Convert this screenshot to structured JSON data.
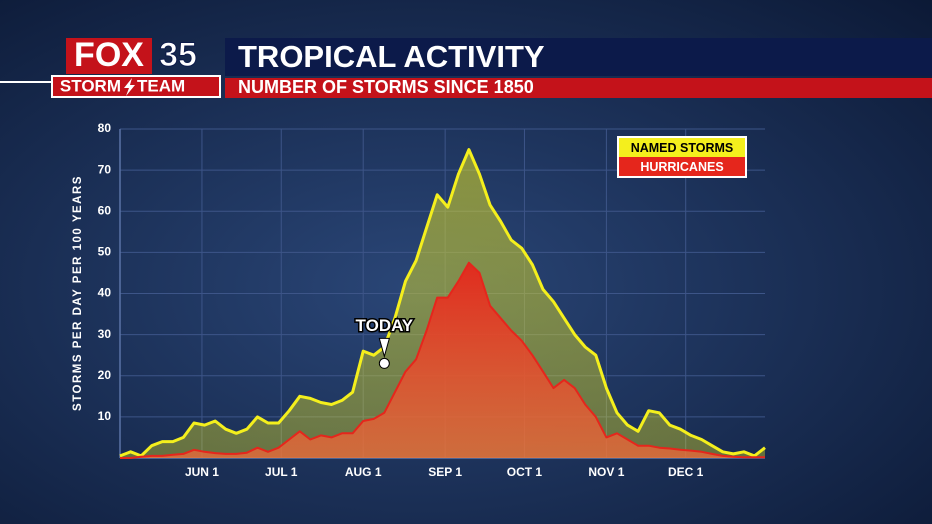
{
  "header": {
    "brand": "FOX",
    "number": "35",
    "team_left": "STORM",
    "team_right": "TEAM"
  },
  "chart_data": {
    "type": "area",
    "title": "TROPICAL ACTIVITY",
    "subtitle": "NUMBER OF STORMS SINCE 1850",
    "y_label": "STORMS PER DAY PER 100 YEARS",
    "annotation": {
      "text": "TODAY",
      "x": 100,
      "y": 23
    },
    "legend_position": "upper right",
    "grid": true,
    "xlim": [
      0,
      244
    ],
    "ylim": [
      0,
      80
    ],
    "xticks": [
      {
        "value": 31,
        "label": "JUN 1"
      },
      {
        "value": 61,
        "label": "JUL 1"
      },
      {
        "value": 92,
        "label": "AUG 1"
      },
      {
        "value": 123,
        "label": "SEP 1"
      },
      {
        "value": 153,
        "label": "OCT 1"
      },
      {
        "value": 184,
        "label": "NOV 1"
      },
      {
        "value": 214,
        "label": "DEC 1"
      }
    ],
    "yticks": [
      10,
      20,
      30,
      40,
      50,
      60,
      70,
      80
    ],
    "x": [
      0,
      4,
      8,
      12,
      16,
      20,
      24,
      28,
      32,
      36,
      40,
      44,
      48,
      52,
      56,
      60,
      64,
      68,
      72,
      76,
      80,
      84,
      88,
      92,
      96,
      100,
      104,
      108,
      112,
      116,
      120,
      124,
      128,
      132,
      136,
      140,
      144,
      148,
      152,
      156,
      160,
      164,
      168,
      172,
      176,
      180,
      184,
      188,
      192,
      196,
      200,
      204,
      208,
      212,
      216,
      220,
      224,
      228,
      232,
      236,
      240,
      244
    ],
    "series": [
      {
        "name": "NAMED STORMS",
        "color": "#f4ef1d",
        "values": [
          0.5,
          1.5,
          0.5,
          3,
          4,
          4,
          5,
          8.5,
          8,
          9,
          7,
          6,
          7,
          10,
          8.5,
          8.5,
          11.5,
          15,
          14.5,
          13.5,
          13,
          14,
          16,
          26,
          25,
          27,
          34,
          43,
          48,
          56,
          64,
          61,
          69,
          75,
          69,
          61.5,
          57.5,
          53,
          51,
          47,
          41,
          38,
          34,
          30,
          27,
          25,
          17,
          11,
          8,
          6.5,
          11.5,
          11,
          8,
          7,
          5.5,
          4.5,
          3,
          1.5,
          1,
          1.5,
          0.5,
          2.5
        ]
      },
      {
        "name": "HURRICANES",
        "color": "#e5261c",
        "values": [
          0,
          0,
          0.3,
          0.5,
          0.5,
          0.8,
          1,
          2,
          1.5,
          1.2,
          1,
          1,
          1.3,
          2.5,
          1.5,
          2.5,
          4.5,
          6.5,
          4.5,
          5.5,
          5,
          6,
          6,
          9,
          9.5,
          11,
          16,
          21,
          24,
          31,
          39,
          39,
          43,
          47.5,
          45,
          37,
          34,
          31,
          28.5,
          25,
          21,
          17,
          19,
          17,
          13,
          10,
          5,
          6,
          4.5,
          3,
          3,
          2.5,
          2.3,
          2,
          1.8,
          1.5,
          1,
          0.5,
          0.3,
          0.2,
          0.2,
          0.2
        ]
      }
    ]
  }
}
